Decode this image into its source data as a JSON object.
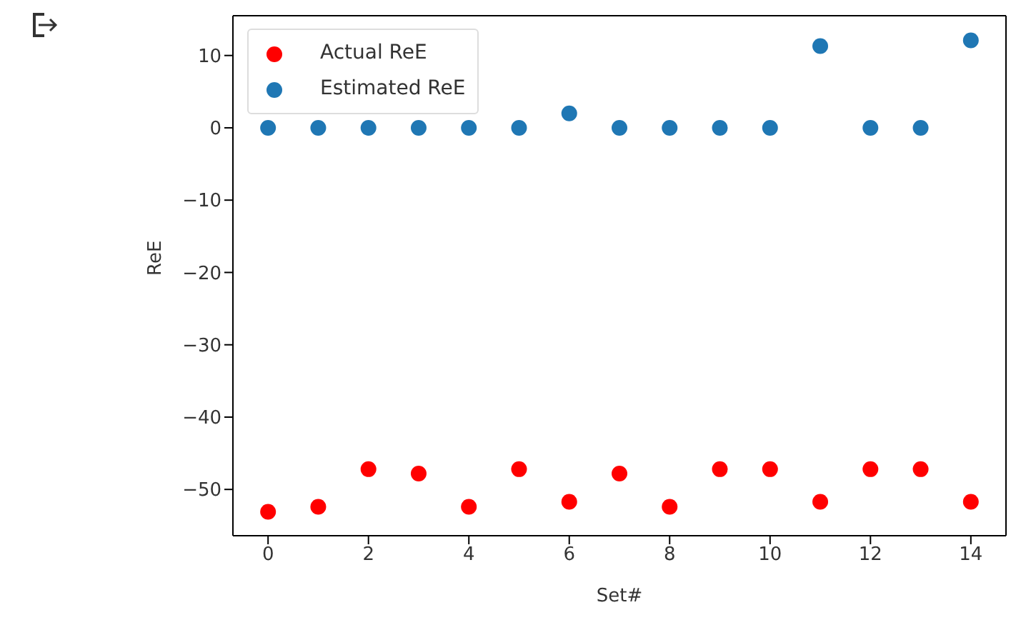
{
  "chart_data": {
    "type": "scatter",
    "xlabel": "Set#",
    "ylabel": "ReE",
    "x": [
      0,
      1,
      2,
      3,
      4,
      5,
      6,
      7,
      8,
      9,
      10,
      11,
      12,
      13,
      14
    ],
    "series": [
      {
        "name": "Actual ReE",
        "color": "#ff0000",
        "values": [
          -53.1,
          -52.4,
          -47.2,
          -47.8,
          -52.4,
          -47.2,
          -51.7,
          -47.8,
          -52.4,
          -47.2,
          -47.2,
          -51.7,
          -47.2,
          -47.2,
          -51.7
        ]
      },
      {
        "name": "Estimated ReE",
        "color": "#1f77b4",
        "values": [
          0,
          0,
          0,
          0,
          0,
          0,
          2,
          0,
          0,
          0,
          0,
          11.3,
          0,
          0,
          12.1
        ]
      }
    ],
    "xlim": [
      -0.7,
      14.7
    ],
    "xticks": [
      0,
      2,
      4,
      6,
      8,
      10,
      12,
      14
    ],
    "ylim": [
      -56.4,
      15.5
    ],
    "yticks": [
      -50,
      -40,
      -30,
      -20,
      -10,
      0,
      10
    ],
    "legend": "top left",
    "marker": "circle"
  }
}
